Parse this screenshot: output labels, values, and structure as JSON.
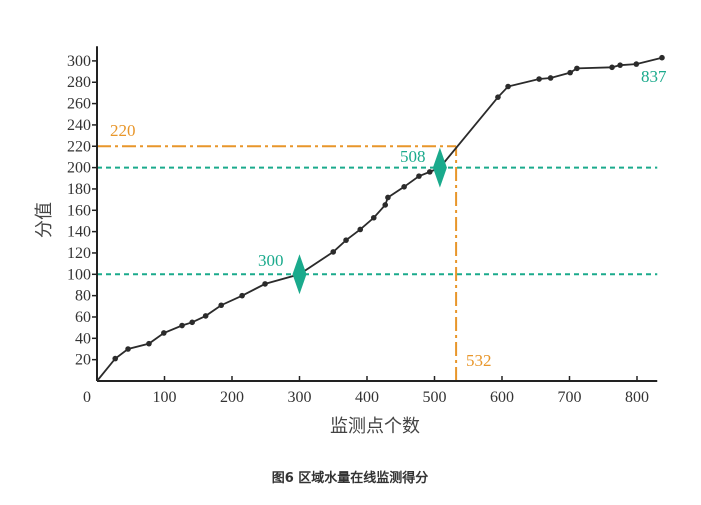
{
  "chart_data": {
    "type": "line",
    "title": "",
    "caption": "图6 区域水量在线监测得分",
    "xlabel": "监测点个数",
    "ylabel": "分值",
    "xlim": [
      0,
      830
    ],
    "ylim": [
      0,
      310
    ],
    "xticks": [
      0,
      100,
      200,
      300,
      400,
      500,
      600,
      700,
      800
    ],
    "yticks": [
      20,
      40,
      60,
      80,
      100,
      120,
      140,
      160,
      180,
      200,
      220,
      240,
      260,
      280,
      300
    ],
    "grid": false,
    "series": [
      {
        "color": "#2b2b2b",
        "x": [
          0,
          27,
          46,
          77,
          99,
          126,
          141,
          161,
          184,
          215,
          249,
          300,
          350,
          369,
          390,
          410,
          427,
          431,
          455,
          477,
          493,
          508,
          594,
          609,
          655,
          672,
          701,
          711,
          763,
          775,
          799,
          837
        ],
        "y": [
          0,
          21,
          30,
          35,
          45,
          52,
          55,
          61,
          71,
          80,
          91,
          100,
          121,
          132,
          142,
          153,
          165,
          172,
          182,
          192,
          196,
          200,
          266,
          276,
          283,
          284,
          289,
          293,
          294,
          296,
          297,
          303
        ],
        "markers": [
          false,
          true,
          true,
          true,
          true,
          true,
          true,
          true,
          true,
          true,
          true,
          false,
          true,
          true,
          true,
          true,
          true,
          true,
          true,
          true,
          true,
          false,
          true,
          true,
          true,
          true,
          true,
          true,
          true,
          true,
          true,
          true
        ]
      }
    ],
    "reference_lines": [
      {
        "orientation": "horizontal",
        "value": 100,
        "style": "dashed",
        "color": "#1aaa8c"
      },
      {
        "orientation": "horizontal",
        "value": 200,
        "style": "dashed",
        "color": "#1aaa8c"
      },
      {
        "orientation": "horizontal",
        "value": 220,
        "style": "dash-dot",
        "color": "#e8962a",
        "x_end": 532
      },
      {
        "orientation": "vertical",
        "value": 532,
        "style": "dash-dot",
        "color": "#e8962a",
        "y_end": 220
      }
    ],
    "highlight_markers": [
      {
        "x": 300,
        "y": 100,
        "shape": "diamond",
        "color": "#1aaa8c"
      },
      {
        "x": 508,
        "y": 200,
        "shape": "diamond",
        "color": "#1aaa8c"
      }
    ],
    "annotations": [
      {
        "text": "220",
        "color": "#e8962a"
      },
      {
        "text": "532",
        "color": "#e8962a"
      },
      {
        "text": "300",
        "color": "#1aaa8c"
      },
      {
        "text": "508",
        "color": "#1aaa8c"
      },
      {
        "text": "837",
        "color": "#1aaa8c"
      }
    ]
  }
}
